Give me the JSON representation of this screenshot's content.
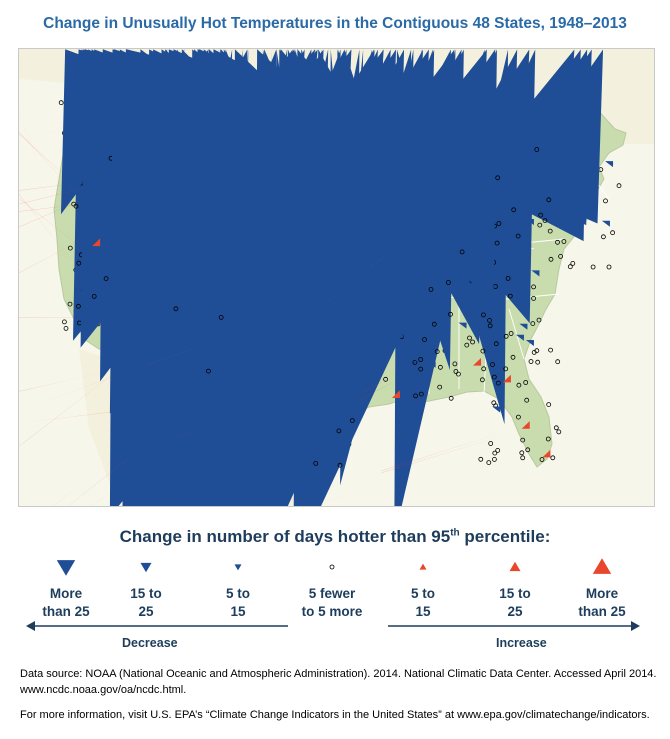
{
  "title": "Change in Unusually Hot Temperatures in the Contiguous 48 States, 1948–2013",
  "legend": {
    "title_main": "Change in number of days hotter than 95",
    "title_sup": "th",
    "title_end": " percentile:",
    "items": [
      {
        "label": "More\nthan 25",
        "symbol": "down-triangle-large",
        "color": "#1f4e96"
      },
      {
        "label": "15 to\n25",
        "symbol": "down-triangle-medium",
        "color": "#1f4e96"
      },
      {
        "label": "5 to\n15",
        "symbol": "down-triangle-small",
        "color": "#1f4e96"
      },
      {
        "label": "5 fewer\nto 5 more",
        "symbol": "open-circle",
        "color": "#000000"
      },
      {
        "label": "5 to\n15",
        "symbol": "up-triangle-small",
        "color": "#e8472e"
      },
      {
        "label": "15 to\n25",
        "symbol": "up-triangle-medium",
        "color": "#e8472e"
      },
      {
        "label": "More\nthan 25",
        "symbol": "up-triangle-large",
        "color": "#e8472e"
      }
    ],
    "decrease_label": "Decrease",
    "increase_label": "Increase"
  },
  "source": "Data source: NOAA (National Oceanic and Atmospheric Administration). 2014. National Climatic Data Center. Accessed April 2014. www.ncdc.noaa.gov/oa/ncdc.html.",
  "more_info": "For more information, visit U.S. EPA’s “Climate Change Indicators in the United States” at www.epa.gov/climatechange/indicators.",
  "colors": {
    "title": "#2a6aa6",
    "decrease": "#1f4e96",
    "increase": "#e8472e",
    "land": "#c9dcae",
    "background": "#f7f6ea",
    "borders": "#ffffff"
  }
}
